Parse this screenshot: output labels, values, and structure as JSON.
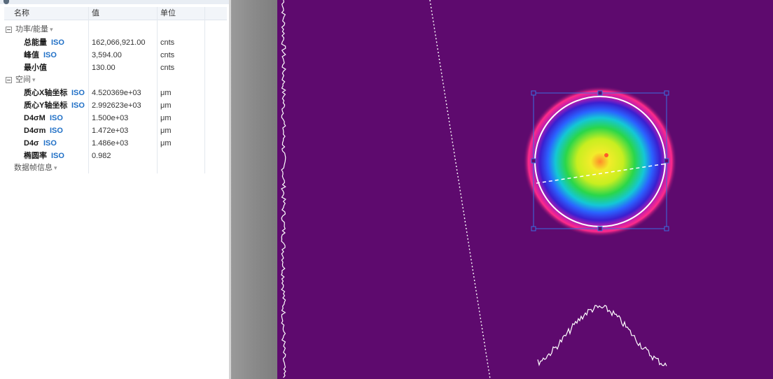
{
  "panel": {
    "columns": {
      "name": "名称",
      "value": "值",
      "unit": "单位"
    },
    "groups": {
      "energy": "功率/能量",
      "space": "空间",
      "frame": "数据帧信息"
    },
    "iso_tag": "ISO",
    "energy_rows": [
      {
        "name": "总能量",
        "value": "162,066,921.00",
        "unit": "cnts",
        "iso": true
      },
      {
        "name": "峰值",
        "value": "3,594.00",
        "unit": "cnts",
        "iso": true
      },
      {
        "name": "最小值",
        "value": "130.00",
        "unit": "cnts",
        "iso": false
      }
    ],
    "space_rows": [
      {
        "name": "质心X轴坐标",
        "value": "4.520369e+03",
        "unit": "μm",
        "iso": true
      },
      {
        "name": "质心Y轴坐标",
        "value": "2.992623e+03",
        "unit": "μm",
        "iso": true
      },
      {
        "name": "D4σM",
        "value": "1.500e+03",
        "unit": "μm",
        "iso": true
      },
      {
        "name": "D4σm",
        "value": "1.472e+03",
        "unit": "μm",
        "iso": true
      },
      {
        "name": "D4σ",
        "value": "1.486e+03",
        "unit": "μm",
        "iso": true
      },
      {
        "name": "椭圆率",
        "value": "0.982",
        "unit": "",
        "iso": true
      }
    ]
  },
  "colors": {
    "background": "#5e0a6e",
    "iso": "#1f6fc6",
    "selection_box": "#3a6fe0",
    "circle": "#ffffff",
    "profile": "#ffffff"
  }
}
